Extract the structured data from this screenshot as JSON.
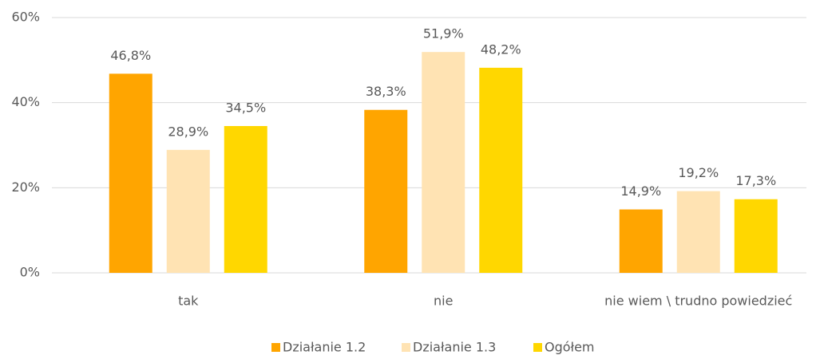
{
  "chart_data": {
    "type": "bar",
    "categories": [
      "tak",
      "nie",
      "nie wiem \\ trudno powiedzieć"
    ],
    "series": [
      {
        "name": "Działanie 1.2",
        "color": "#ffa500",
        "values": [
          46.8,
          38.3,
          14.9
        ],
        "value_labels": [
          "46,8%",
          "38,3%",
          "14,9%"
        ]
      },
      {
        "name": "Działanie 1.3",
        "color": "#ffe3b3",
        "values": [
          28.9,
          51.9,
          19.2
        ],
        "value_labels": [
          "28,9%",
          "51,9%",
          "19,2%"
        ]
      },
      {
        "name": "Ogółem",
        "color": "#ffd700",
        "values": [
          34.5,
          48.2,
          17.3
        ],
        "value_labels": [
          "34,5%",
          "48,2%",
          "17,3%"
        ]
      }
    ],
    "ylim": [
      0,
      60
    ],
    "yticks": [
      {
        "value": 0,
        "label": "0%"
      },
      {
        "value": 20,
        "label": "20%"
      },
      {
        "value": 40,
        "label": "40%"
      },
      {
        "value": 60,
        "label": "60%"
      }
    ],
    "grid": true,
    "legend": "bottom"
  }
}
